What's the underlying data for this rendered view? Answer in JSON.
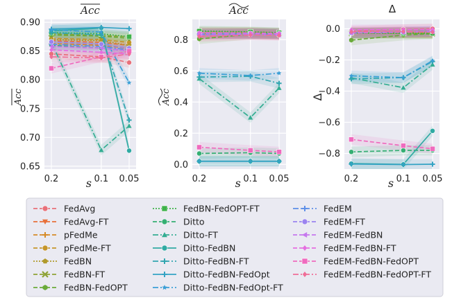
{
  "chart_data": [
    {
      "type": "line",
      "title": "Acc (overline)",
      "xlabel": "s",
      "ylabel": "Acc (overline)",
      "x": [
        0.2,
        0.1,
        0.05
      ],
      "x_tick_labels": [
        "0.2",
        "0.1",
        "0.05"
      ],
      "ylim": [
        0.645,
        0.905
      ],
      "y_ticks": [
        0.65,
        0.7,
        0.75,
        0.8,
        0.85,
        0.9
      ],
      "y_tick_labels": [
        "0.65",
        "0.70",
        "0.75",
        "0.80",
        "0.85",
        "0.90"
      ],
      "series": [
        {
          "name": "FedAvg",
          "values": [
            0.845,
            0.84,
            0.83
          ]
        },
        {
          "name": "FedAvg-FT",
          "values": [
            0.868,
            0.865,
            0.86
          ]
        },
        {
          "name": "pFedMe",
          "values": [
            0.863,
            0.86,
            0.855
          ]
        },
        {
          "name": "pFedMe-FT",
          "values": [
            0.872,
            0.87,
            0.865
          ]
        },
        {
          "name": "FedBN",
          "values": [
            0.87,
            0.868,
            0.86
          ]
        },
        {
          "name": "FedBN-FT",
          "values": [
            0.88,
            0.877,
            0.875
          ]
        },
        {
          "name": "FedBN-FedOPT",
          "values": [
            0.878,
            0.876,
            0.872
          ]
        },
        {
          "name": "FedBN-FedOPT-FT",
          "values": [
            0.882,
            0.88,
            0.875
          ]
        },
        {
          "name": "Ditto",
          "values": [
            0.86,
            0.855,
            0.85
          ]
        },
        {
          "name": "Ditto-FT",
          "values": [
            0.865,
            0.678,
            0.72
          ]
        },
        {
          "name": "Ditto-FedBN",
          "values": [
            0.885,
            0.89,
            0.677
          ]
        },
        {
          "name": "Ditto-FedBN-FT",
          "values": [
            0.882,
            0.878,
            0.73
          ]
        },
        {
          "name": "Ditto-FedBN-FedOpt",
          "values": [
            0.888,
            0.891,
            0.889
          ]
        },
        {
          "name": "Ditto-FedBN-FedOpt-FT",
          "values": [
            0.887,
            0.883,
            0.795
          ]
        },
        {
          "name": "FedEM",
          "values": [
            0.862,
            0.858,
            0.852
          ]
        },
        {
          "name": "FedEM-FT",
          "values": [
            0.866,
            0.862,
            0.855
          ]
        },
        {
          "name": "FedEM-FedBN",
          "values": [
            0.858,
            0.855,
            0.85
          ]
        },
        {
          "name": "FedEM-FedBN-FT",
          "values": [
            0.852,
            0.848,
            0.845
          ]
        },
        {
          "name": "FedEM-FedBN-FedOPT",
          "values": [
            0.82,
            0.84,
            0.85
          ]
        },
        {
          "name": "FedEM-FedBN-FedOPT-FT",
          "values": [
            0.84,
            0.838,
            0.845
          ]
        }
      ]
    },
    {
      "type": "line",
      "title": "Acc (tilde)",
      "xlabel": "s",
      "ylabel": "Acc (tilde)",
      "x": [
        0.2,
        0.1,
        0.05
      ],
      "x_tick_labels": [
        "0.2",
        "0.1",
        "0.05"
      ],
      "ylim": [
        -0.03,
        0.93
      ],
      "y_ticks": [
        0.0,
        0.2,
        0.4,
        0.6,
        0.8
      ],
      "y_tick_labels": [
        "0.0",
        "0.2",
        "0.4",
        "0.6",
        "0.8"
      ],
      "series": [
        {
          "name": "FedAvg",
          "values": [
            0.83,
            0.835,
            0.83
          ]
        },
        {
          "name": "FedAvg-FT",
          "values": [
            0.84,
            0.84,
            0.835
          ]
        },
        {
          "name": "pFedMe",
          "values": [
            0.835,
            0.838,
            0.833
          ]
        },
        {
          "name": "pFedMe-FT",
          "values": [
            0.845,
            0.845,
            0.84
          ]
        },
        {
          "name": "FedBN",
          "values": [
            0.84,
            0.843,
            0.838
          ]
        },
        {
          "name": "FedBN-FT",
          "values": [
            0.85,
            0.848,
            0.843
          ]
        },
        {
          "name": "FedBN-FedOPT",
          "values": [
            0.805,
            0.835,
            0.84
          ]
        },
        {
          "name": "FedBN-FedOPT-FT",
          "values": [
            0.855,
            0.85,
            0.845
          ]
        },
        {
          "name": "Ditto",
          "values": [
            0.07,
            0.075,
            0.07
          ]
        },
        {
          "name": "Ditto-FT",
          "values": [
            0.55,
            0.3,
            0.49
          ]
        },
        {
          "name": "Ditto-FedBN",
          "values": [
            0.02,
            0.02,
            0.02
          ]
        },
        {
          "name": "Ditto-FedBN-FT",
          "values": [
            0.56,
            0.565,
            0.52
          ]
        },
        {
          "name": "Ditto-FedBN-FedOpt",
          "values": [
            0.02,
            0.02,
            0.02
          ]
        },
        {
          "name": "Ditto-FedBN-FedOpt-FT",
          "values": [
            0.585,
            0.57,
            0.585
          ]
        },
        {
          "name": "FedEM",
          "values": [
            0.835,
            0.838,
            0.835
          ]
        },
        {
          "name": "FedEM-FT",
          "values": [
            0.84,
            0.84,
            0.838
          ]
        },
        {
          "name": "FedEM-FedBN",
          "values": [
            0.83,
            0.833,
            0.83
          ]
        },
        {
          "name": "FedEM-FedBN-FT",
          "values": [
            0.845,
            0.843,
            0.84
          ]
        },
        {
          "name": "FedEM-FedBN-FedOPT",
          "values": [
            0.11,
            0.09,
            0.08
          ]
        },
        {
          "name": "FedEM-FedBN-FedOPT-FT",
          "values": [
            0.82,
            0.83,
            0.828
          ]
        }
      ]
    },
    {
      "type": "line",
      "title": "Δ",
      "xlabel": "s",
      "ylabel": "Δ",
      "x": [
        0.2,
        0.1,
        0.05
      ],
      "x_tick_labels": [
        "0.2",
        "0.1",
        "0.05"
      ],
      "ylim": [
        -0.9,
        0.06
      ],
      "y_ticks": [
        0.0,
        -0.2,
        -0.4,
        -0.6,
        -0.8
      ],
      "y_tick_labels": [
        "0.0",
        "−0.2",
        "−0.4",
        "−0.6",
        "−0.8"
      ],
      "series": [
        {
          "name": "FedAvg",
          "values": [
            -0.015,
            -0.005,
            -0.0
          ]
        },
        {
          "name": "FedAvg-FT",
          "values": [
            -0.028,
            -0.025,
            -0.025
          ]
        },
        {
          "name": "pFedMe",
          "values": [
            -0.028,
            -0.022,
            -0.022
          ]
        },
        {
          "name": "pFedMe-FT",
          "values": [
            -0.027,
            -0.025,
            -0.025
          ]
        },
        {
          "name": "FedBN",
          "values": [
            -0.03,
            -0.025,
            -0.022
          ]
        },
        {
          "name": "FedBN-FT",
          "values": [
            -0.03,
            -0.029,
            -0.032
          ]
        },
        {
          "name": "FedBN-FedOPT",
          "values": [
            -0.073,
            -0.041,
            -0.032
          ]
        },
        {
          "name": "FedBN-FedOPT-FT",
          "values": [
            -0.027,
            -0.03,
            -0.03
          ]
        },
        {
          "name": "Ditto",
          "values": [
            -0.79,
            -0.78,
            -0.78
          ]
        },
        {
          "name": "Ditto-FT",
          "values": [
            -0.315,
            -0.378,
            -0.23
          ]
        },
        {
          "name": "Ditto-FedBN",
          "values": [
            -0.865,
            -0.87,
            -0.655
          ]
        },
        {
          "name": "Ditto-FedBN-FT",
          "values": [
            -0.322,
            -0.313,
            -0.21
          ]
        },
        {
          "name": "Ditto-FedBN-FedOpt",
          "values": [
            -0.868,
            -0.871,
            -0.869
          ]
        },
        {
          "name": "Ditto-FedBN-FedOpt-FT",
          "values": [
            -0.302,
            -0.313,
            -0.205
          ]
        },
        {
          "name": "FedEM",
          "values": [
            -0.027,
            -0.02,
            -0.017
          ]
        },
        {
          "name": "FedEM-FT",
          "values": [
            -0.026,
            -0.022,
            -0.017
          ]
        },
        {
          "name": "FedEM-FedBN",
          "values": [
            -0.028,
            -0.022,
            -0.02
          ]
        },
        {
          "name": "FedEM-FedBN-FT",
          "values": [
            -0.007,
            -0.005,
            -0.005
          ]
        },
        {
          "name": "FedEM-FedBN-FedOPT",
          "values": [
            -0.71,
            -0.75,
            -0.77
          ]
        },
        {
          "name": "FedEM-FedBN-FedOPT-FT",
          "values": [
            -0.02,
            -0.018,
            -0.022
          ]
        }
      ]
    }
  ],
  "legend": [
    {
      "label": "FedAvg",
      "color": "#e8707a",
      "marker": "circle",
      "dash": "6,3"
    },
    {
      "label": "FedAvg-FT",
      "color": "#e8703a",
      "marker": "triangle-down",
      "dash": "6,3"
    },
    {
      "label": "pFedMe",
      "color": "#d68a26",
      "marker": "plus",
      "dash": "6,3"
    },
    {
      "label": "pFedMe-FT",
      "color": "#c5952a",
      "marker": "circle",
      "dash": "6,3"
    },
    {
      "label": "FedBN",
      "color": "#b09a2c",
      "marker": "pentagon",
      "dash": "2,2"
    },
    {
      "label": "FedBN-FT",
      "color": "#8ea234",
      "marker": "x",
      "dash": "6,3"
    },
    {
      "label": "FedBN-FedOPT",
      "color": "#6aab3a",
      "marker": "hexagon",
      "dash": "6,3"
    },
    {
      "label": "FedBN-FedOPT-FT",
      "color": "#3fb24a",
      "marker": "square",
      "dash": "2,2"
    },
    {
      "label": "Ditto",
      "color": "#35af73",
      "marker": "circle",
      "dash": "6,3"
    },
    {
      "label": "Ditto-FT",
      "color": "#33ad92",
      "marker": "triangle-up",
      "dash": "8,3,2,3"
    },
    {
      "label": "Ditto-FedBN",
      "color": "#30aaa3",
      "marker": "circle",
      "dash": ""
    },
    {
      "label": "Ditto-FedBN-FT",
      "color": "#31a6b0",
      "marker": "plus",
      "dash": "8,3,2,3"
    },
    {
      "label": "Ditto-FedBN-FedOpt",
      "color": "#34a3c4",
      "marker": "plus",
      "dash": ""
    },
    {
      "label": "Ditto-FedBN-FedOpt-FT",
      "color": "#3a9fd6",
      "marker": "star",
      "dash": "8,3,2,3"
    },
    {
      "label": "FedEM",
      "color": "#5d8fe8",
      "marker": "plus",
      "dash": "8,3,2,3"
    },
    {
      "label": "FedEM-FT",
      "color": "#9b83ef",
      "marker": "circle",
      "dash": "6,3"
    },
    {
      "label": "FedEM-FedBN",
      "color": "#c677ee",
      "marker": "triangle-left",
      "dash": "6,3"
    },
    {
      "label": "FedEM-FedBN-FT",
      "color": "#e56ee0",
      "marker": "diamond",
      "dash": "6,3"
    },
    {
      "label": "FedEM-FedBN-FedOPT",
      "color": "#ef6bbe",
      "marker": "square",
      "dash": "6,3"
    },
    {
      "label": "FedEM-FedBN-FedOPT-FT",
      "color": "#f06e98",
      "marker": "diamond",
      "dash": "8,3,2,3"
    }
  ]
}
